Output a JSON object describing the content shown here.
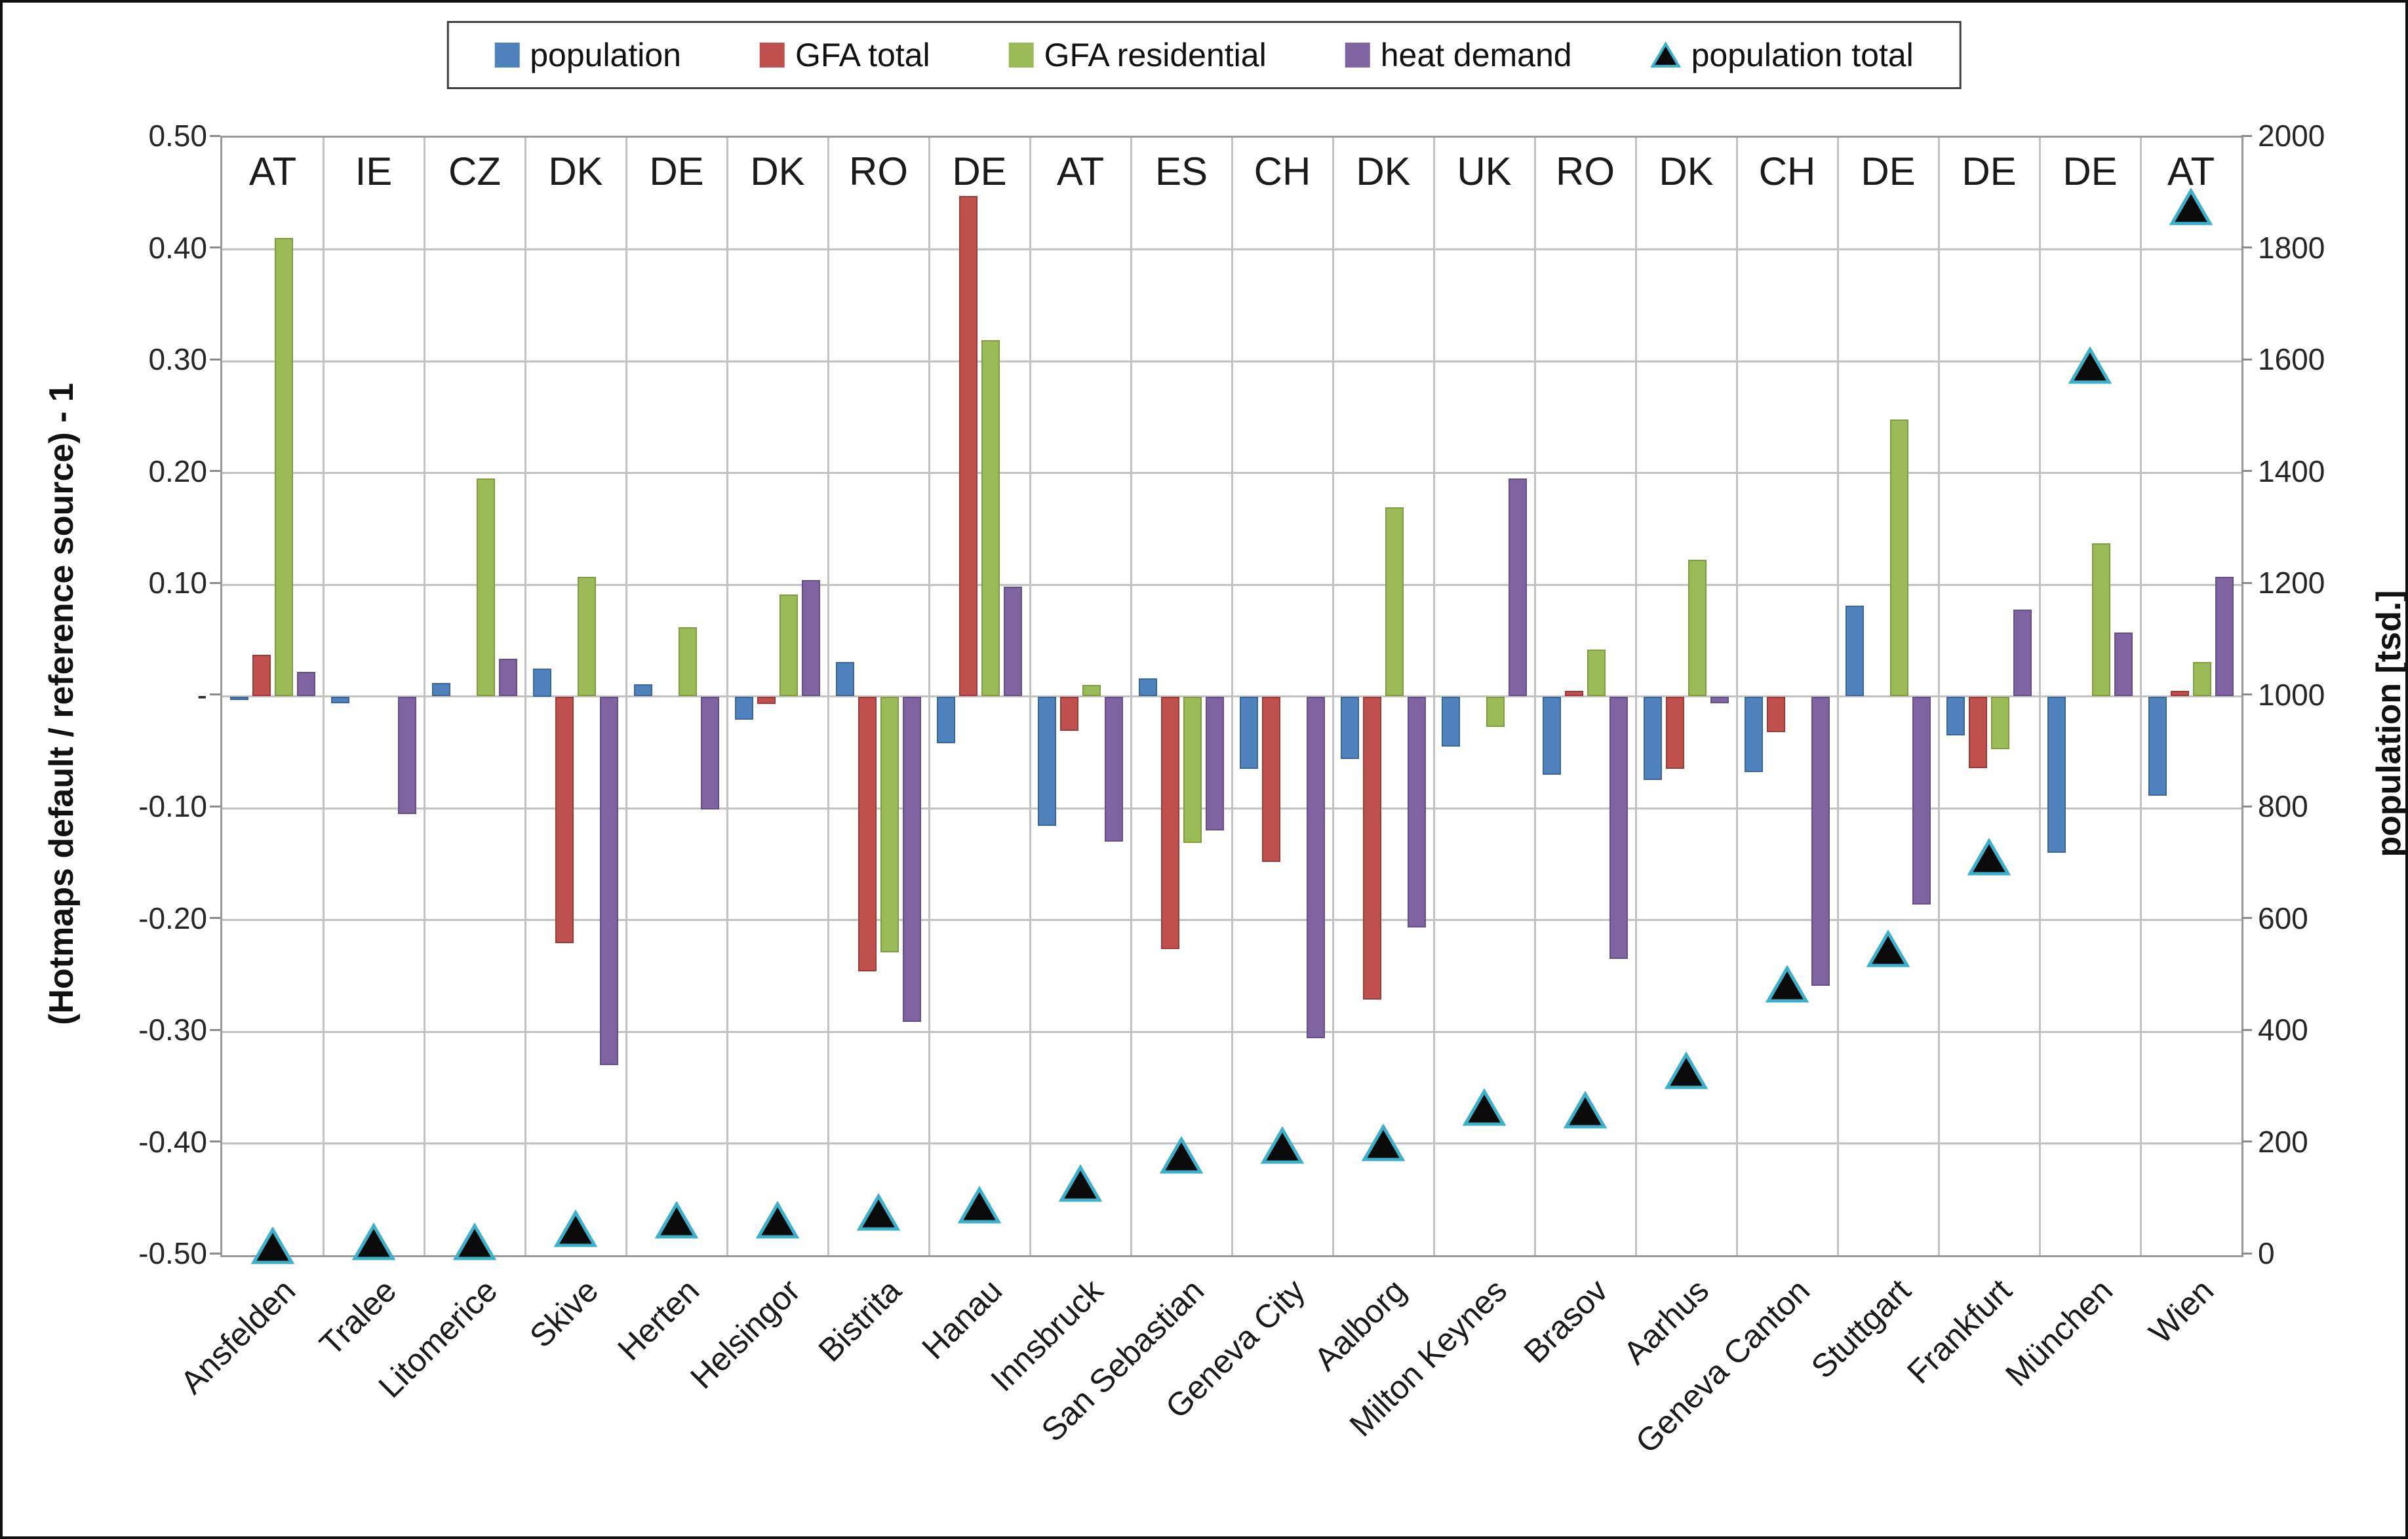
{
  "figure": {
    "left_axis_title": "(Hotmaps default / reference source) - 1",
    "right_axis_title": "population [tsd.]"
  },
  "legend": {
    "items": [
      {
        "label": "population",
        "marker": "square",
        "color": "#4F81BD"
      },
      {
        "label": "GFA total",
        "marker": "square",
        "color": "#C0504D"
      },
      {
        "label": "GFA residential",
        "marker": "square",
        "color": "#9BBB59"
      },
      {
        "label": "heat demand",
        "marker": "square",
        "color": "#8064A2"
      },
      {
        "label": "population total",
        "marker": "triangle",
        "color": "#0A0A0A",
        "edge_color": "#3FB0C9"
      }
    ]
  },
  "chart_data": {
    "type": "bar",
    "title": "",
    "xlabel": "",
    "ylabel_left": "(Hotmaps default / reference source) - 1",
    "ylabel_right": "population [tsd.]",
    "grid": true,
    "legend_position": "top-center",
    "categories": [
      "Ansfelden",
      "Tralee",
      "Litomerice",
      "Skive",
      "Herten",
      "Helsingor",
      "Bistrita",
      "Hanau",
      "Innsbruck",
      "San Sebastian",
      "Geneva City",
      "Aalborg",
      "Milton Keynes",
      "Brasov",
      "Aarhus",
      "Geneva Canton",
      "Stuttgart",
      "Frankfurt",
      "München",
      "Wien"
    ],
    "country_codes": [
      "AT",
      "IE",
      "CZ",
      "DK",
      "DE",
      "DK",
      "RO",
      "DE",
      "AT",
      "ES",
      "CH",
      "DK",
      "UK",
      "RO",
      "DK",
      "CH",
      "DE",
      "DE",
      "DE",
      "AT"
    ],
    "left_axis": {
      "min": -0.5,
      "max": 0.5,
      "step": 0.1,
      "tick_labels": [
        "0.50",
        "0.40",
        "0.30",
        "0.20",
        "0.10",
        "-",
        "-0.10",
        "-0.20",
        "-0.30",
        "-0.40",
        "-0.50"
      ]
    },
    "right_axis": {
      "min": 0,
      "max": 2000,
      "step": 200,
      "tick_labels": [
        "2000",
        "1800",
        "1600",
        "1400",
        "1200",
        "1000",
        "800",
        "600",
        "400",
        "200",
        "0"
      ]
    },
    "series": [
      {
        "name": "population",
        "type": "bar",
        "axis": "left",
        "color": "#4F81BD",
        "edge": "#39679c",
        "values": [
          -0.003,
          -0.006,
          0.012,
          0.025,
          0.011,
          -0.021,
          0.031,
          -0.042,
          -0.116,
          0.016,
          -0.065,
          -0.056,
          -0.045,
          -0.07,
          -0.075,
          -0.068,
          0.081,
          -0.035,
          -0.14,
          -0.089
        ]
      },
      {
        "name": "GFA total",
        "type": "bar",
        "axis": "left",
        "color": "#C0504D",
        "edge": "#9e3b39",
        "values": [
          0.037,
          0,
          0,
          -0.221,
          0,
          -0.007,
          -0.246,
          0.448,
          -0.031,
          -0.226,
          -0.148,
          -0.271,
          0,
          0.005,
          -0.065,
          -0.032,
          0,
          -0.064,
          0,
          0.005
        ]
      },
      {
        "name": "GFA residential",
        "type": "bar",
        "axis": "left",
        "color": "#9BBB59",
        "edge": "#7e9c42",
        "values": [
          0.41,
          0,
          0.195,
          0.107,
          0.062,
          0.091,
          -0.229,
          0.319,
          0.01,
          -0.131,
          0,
          0.169,
          -0.027,
          0.042,
          0.122,
          0,
          0.248,
          -0.047,
          0.137,
          0.031
        ]
      },
      {
        "name": "heat demand",
        "type": "bar",
        "axis": "left",
        "color": "#8064A2",
        "edge": "#66508a",
        "values": [
          0.022,
          -0.105,
          0.034,
          -0.33,
          -0.101,
          0.104,
          -0.291,
          0.098,
          -0.13,
          -0.12,
          -0.306,
          -0.207,
          0.195,
          -0.235,
          -0.006,
          -0.259,
          -0.186,
          0.078,
          0.057,
          0.107
        ]
      },
      {
        "name": "population total",
        "type": "scatter",
        "marker": "triangle",
        "axis": "right",
        "color": "#0A0A0A",
        "edge": "#3FB0C9",
        "values": [
          16,
          24,
          24,
          47,
          62,
          62,
          76,
          89,
          128,
          178,
          196,
          201,
          264,
          259,
          330,
          484,
          548,
          712,
          1592,
          1876
        ]
      }
    ]
  }
}
